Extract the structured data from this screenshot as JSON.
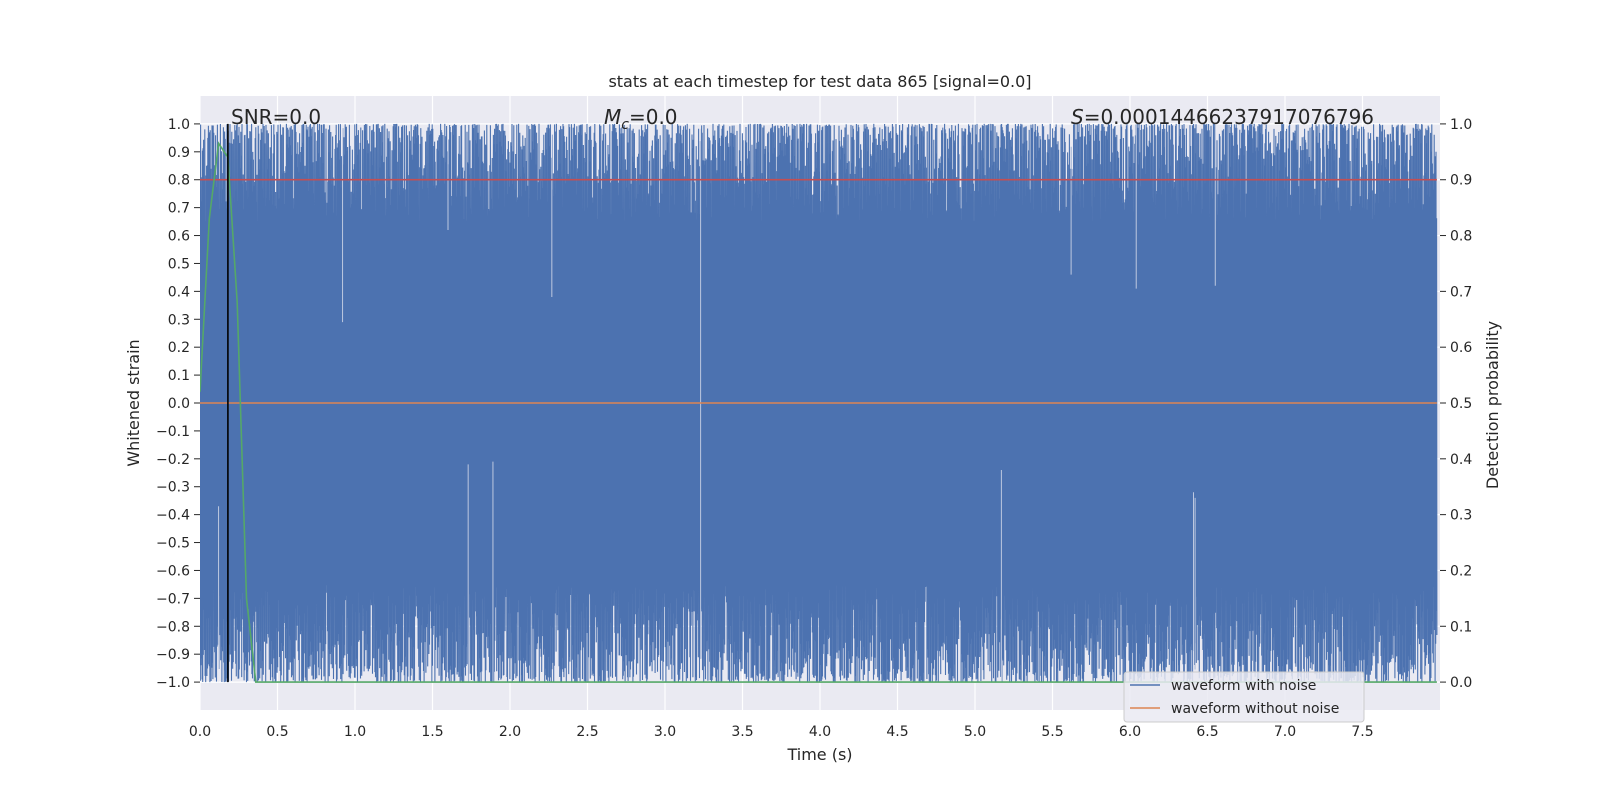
{
  "chart_data": {
    "type": "line",
    "title": "stats at each timestep for test data 865 [signal=0.0]",
    "xlabel": "Time (s)",
    "ylabel": "Whitened strain",
    "y2label": "Detection probability",
    "xlim": [
      0.0,
      8.0
    ],
    "ylim": [
      -1.1,
      1.1
    ],
    "y2lim": [
      -0.05,
      1.05
    ],
    "xticks": [
      0.0,
      0.5,
      1.0,
      1.5,
      2.0,
      2.5,
      3.0,
      3.5,
      4.0,
      4.5,
      5.0,
      5.5,
      6.0,
      6.5,
      7.0,
      7.5
    ],
    "yticks": [
      -1.0,
      -0.9,
      -0.8,
      -0.7,
      -0.6,
      -0.5,
      -0.4,
      -0.3,
      -0.2,
      -0.1,
      0.0,
      0.1,
      0.2,
      0.3,
      0.4,
      0.5,
      0.6,
      0.7,
      0.8,
      0.9,
      1.0
    ],
    "y2ticks": [
      0.0,
      0.1,
      0.2,
      0.3,
      0.4,
      0.5,
      0.6,
      0.7,
      0.8,
      0.9,
      1.0
    ],
    "grid": true,
    "legend_position": "bottom-right",
    "annotations": {
      "snr": "SNR=0.0",
      "mc_symbol": "M",
      "mc_subscript": "c",
      "mc_value": "=0.0",
      "s_symbol": "S",
      "s_value": "=0.00014466237917076796"
    },
    "series": [
      {
        "name": "waveform with noise",
        "color": "#4c72b0",
        "description_kind": "noise band",
        "x_range": [
          0.0,
          7.98
        ],
        "y_range": [
          -1.0,
          1.0
        ],
        "marker_dips": [
          [
            0.92,
            0.29
          ],
          [
            1.6,
            0.62
          ],
          [
            2.27,
            0.38
          ],
          [
            3.23,
            -0.12
          ],
          [
            5.62,
            0.46
          ],
          [
            6.04,
            0.41
          ],
          [
            6.55,
            0.42
          ]
        ],
        "marker_peaks": [
          [
            0.12,
            -0.37
          ],
          [
            1.73,
            -0.22
          ],
          [
            1.89,
            -0.21
          ],
          [
            3.23,
            -0.12
          ],
          [
            5.17,
            -0.24
          ],
          [
            6.41,
            -0.32
          ],
          [
            6.42,
            -0.34
          ]
        ]
      },
      {
        "name": "waveform without noise",
        "color": "#dd8452",
        "x": [
          0.0,
          7.98
        ],
        "y": [
          0.0,
          0.0
        ]
      },
      {
        "name": "",
        "axis": "y2",
        "color": "#55a868",
        "x": [
          0.0,
          0.06,
          0.12,
          0.18,
          0.24,
          0.3,
          0.36,
          0.42,
          7.98
        ],
        "y": [
          0.52,
          0.83,
          0.965,
          0.94,
          0.68,
          0.15,
          0.0,
          0.0,
          0.0
        ]
      },
      {
        "name": "",
        "axis": "y2",
        "color": "#c44e52",
        "x": [
          0.0,
          7.98
        ],
        "y": [
          0.9,
          0.9
        ]
      }
    ],
    "vline": {
      "x": 0.18,
      "color": "#000000"
    }
  }
}
